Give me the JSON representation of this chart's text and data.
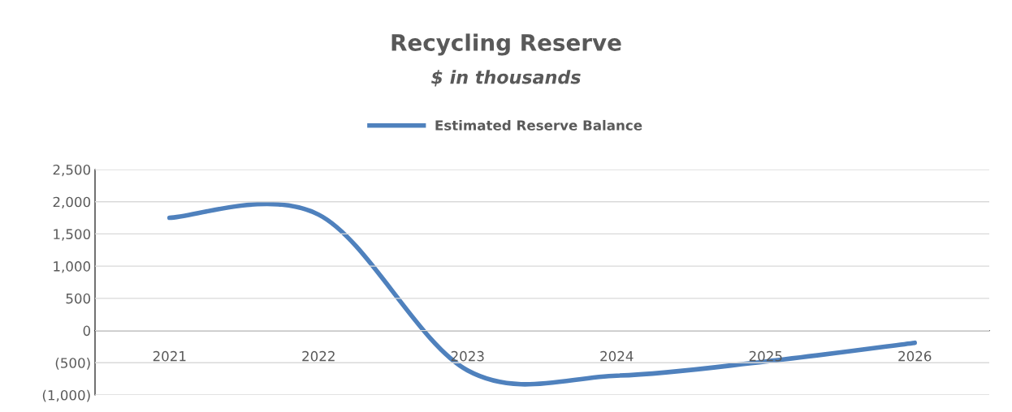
{
  "chart_data": {
    "type": "line",
    "title": "Recycling Reserve",
    "subtitle": "$ in thousands",
    "categories": [
      "2021",
      "2022",
      "2023",
      "2024",
      "2025",
      "2026"
    ],
    "series": [
      {
        "name": "Estimated Reserve Balance",
        "color": "#4f81bd",
        "values": [
          1750,
          1800,
          -620,
          -700,
          -480,
          -190
        ]
      }
    ],
    "ylim": [
      -1000,
      2500
    ],
    "yticks": [
      {
        "value": -1000,
        "label": "(1,000)"
      },
      {
        "value": -500,
        "label": "(500)"
      },
      0,
      500,
      {
        "value": 1000,
        "label": "1,000"
      },
      {
        "value": 1500,
        "label": "1,500"
      },
      {
        "value": 2000,
        "label": "2,000"
      },
      {
        "value": 2500,
        "label": "2,500"
      }
    ],
    "grid": "y",
    "legend": "top",
    "line_style": "solid",
    "marker": "none"
  }
}
